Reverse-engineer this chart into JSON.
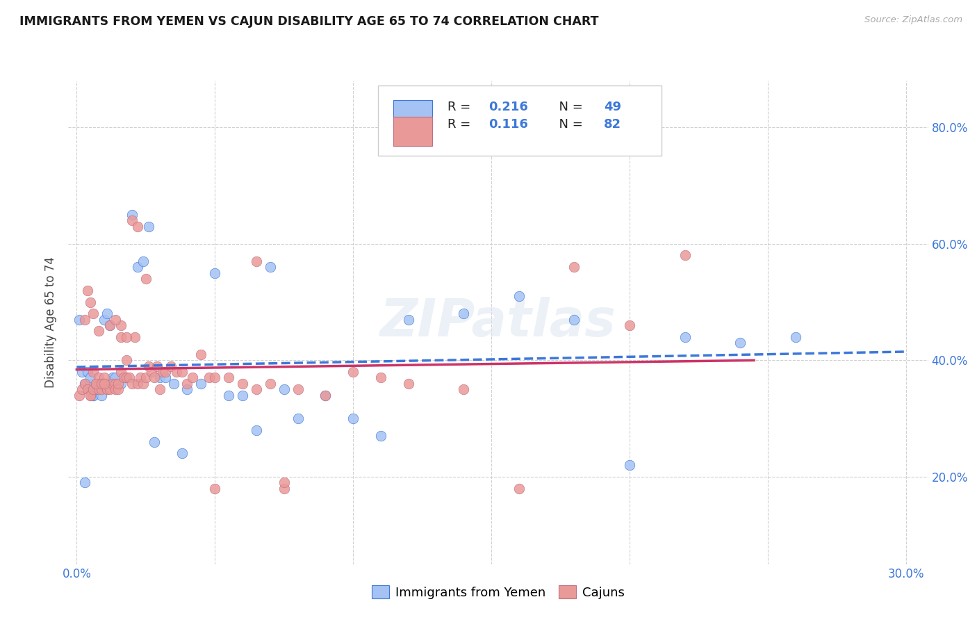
{
  "title": "IMMIGRANTS FROM YEMEN VS CAJUN DISABILITY AGE 65 TO 74 CORRELATION CHART",
  "source": "Source: ZipAtlas.com",
  "ylabel": "Disability Age 65 to 74",
  "color_blue": "#a4c2f4",
  "color_pink": "#ea9999",
  "line_blue": "#3c78d8",
  "line_pink": "#cc3366",
  "watermark": "ZIPatlas",
  "r_blue": "0.216",
  "n_blue": "49",
  "r_pink": "0.116",
  "n_pink": "82",
  "blue_x": [
    0.001,
    0.002,
    0.003,
    0.004,
    0.004,
    0.005,
    0.005,
    0.006,
    0.006,
    0.007,
    0.008,
    0.009,
    0.01,
    0.011,
    0.012,
    0.013,
    0.014,
    0.016,
    0.018,
    0.02,
    0.022,
    0.024,
    0.026,
    0.028,
    0.03,
    0.032,
    0.035,
    0.038,
    0.04,
    0.045,
    0.05,
    0.055,
    0.06,
    0.065,
    0.07,
    0.075,
    0.08,
    0.09,
    0.1,
    0.11,
    0.12,
    0.14,
    0.16,
    0.18,
    0.2,
    0.22,
    0.24,
    0.26,
    0.003
  ],
  "blue_y": [
    0.47,
    0.38,
    0.36,
    0.38,
    0.35,
    0.36,
    0.37,
    0.34,
    0.34,
    0.35,
    0.36,
    0.34,
    0.47,
    0.48,
    0.46,
    0.37,
    0.37,
    0.36,
    0.37,
    0.65,
    0.56,
    0.57,
    0.63,
    0.26,
    0.37,
    0.37,
    0.36,
    0.24,
    0.35,
    0.36,
    0.55,
    0.34,
    0.34,
    0.28,
    0.56,
    0.35,
    0.3,
    0.34,
    0.3,
    0.27,
    0.47,
    0.48,
    0.51,
    0.47,
    0.22,
    0.44,
    0.43,
    0.44,
    0.19
  ],
  "pink_x": [
    0.001,
    0.002,
    0.003,
    0.004,
    0.004,
    0.005,
    0.005,
    0.006,
    0.006,
    0.007,
    0.008,
    0.008,
    0.009,
    0.01,
    0.01,
    0.011,
    0.011,
    0.012,
    0.013,
    0.014,
    0.014,
    0.015,
    0.015,
    0.016,
    0.016,
    0.017,
    0.018,
    0.018,
    0.019,
    0.02,
    0.021,
    0.022,
    0.023,
    0.024,
    0.025,
    0.026,
    0.027,
    0.028,
    0.029,
    0.03,
    0.031,
    0.032,
    0.034,
    0.036,
    0.038,
    0.04,
    0.042,
    0.045,
    0.048,
    0.05,
    0.055,
    0.06,
    0.065,
    0.07,
    0.075,
    0.08,
    0.09,
    0.1,
    0.11,
    0.12,
    0.14,
    0.16,
    0.18,
    0.2,
    0.22,
    0.003,
    0.005,
    0.006,
    0.007,
    0.008,
    0.009,
    0.01,
    0.012,
    0.014,
    0.016,
    0.018,
    0.02,
    0.022,
    0.025,
    0.065,
    0.05,
    0.075
  ],
  "pink_y": [
    0.34,
    0.35,
    0.36,
    0.52,
    0.35,
    0.34,
    0.34,
    0.38,
    0.35,
    0.36,
    0.35,
    0.37,
    0.35,
    0.37,
    0.36,
    0.35,
    0.35,
    0.35,
    0.36,
    0.36,
    0.35,
    0.35,
    0.36,
    0.46,
    0.38,
    0.37,
    0.4,
    0.37,
    0.37,
    0.36,
    0.44,
    0.36,
    0.37,
    0.36,
    0.37,
    0.39,
    0.38,
    0.37,
    0.39,
    0.35,
    0.38,
    0.38,
    0.39,
    0.38,
    0.38,
    0.36,
    0.37,
    0.41,
    0.37,
    0.37,
    0.37,
    0.36,
    0.35,
    0.36,
    0.18,
    0.35,
    0.34,
    0.38,
    0.37,
    0.36,
    0.35,
    0.18,
    0.56,
    0.46,
    0.58,
    0.47,
    0.5,
    0.48,
    0.36,
    0.45,
    0.36,
    0.36,
    0.46,
    0.47,
    0.44,
    0.44,
    0.64,
    0.63,
    0.54,
    0.57,
    0.18,
    0.19
  ]
}
